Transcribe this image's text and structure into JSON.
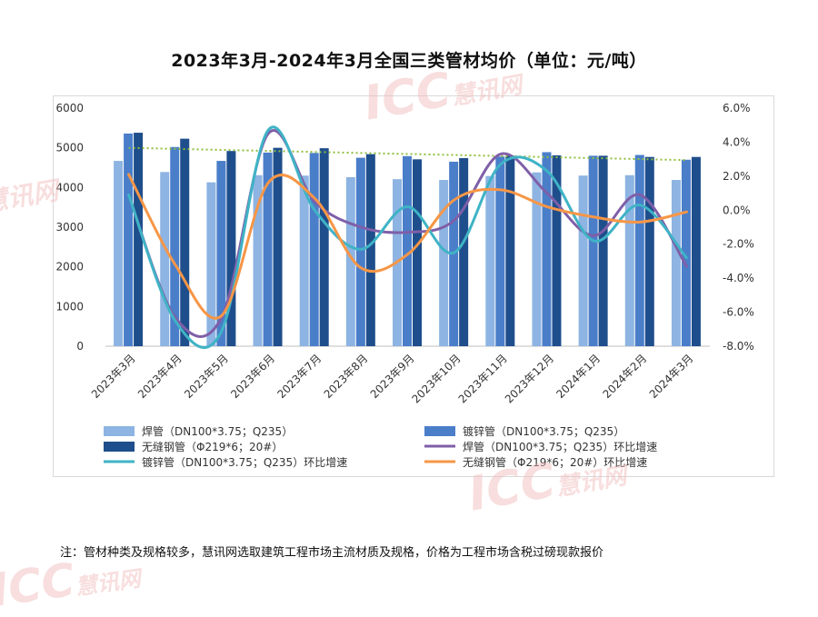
{
  "chart_data": {
    "type": "bar",
    "title": "2023年3月-2024年3月全国三类管材均价（单位：元/吨）",
    "categories": [
      "2023年3月",
      "2023年4月",
      "2023年5月",
      "2023年6月",
      "2023年7月",
      "2023年8月",
      "2023年9月",
      "2023年10月",
      "2023年11月",
      "2023年12月",
      "2024年1月",
      "2024年2月",
      "2024年3月"
    ],
    "left_axis": {
      "ylim": [
        0,
        6000
      ],
      "ticks": [
        "0",
        "1000",
        "2000",
        "3000",
        "4000",
        "5000",
        "6000"
      ]
    },
    "right_axis": {
      "ylim": [
        -8.0,
        6.0
      ],
      "ticks": [
        "-8.0%",
        "-6.0%",
        "-4.0%",
        "-2.0%",
        "0.0%",
        "2.0%",
        "4.0%",
        "6.0%"
      ]
    },
    "bar_series": [
      {
        "name": "焊管（DN100*3.75；Q235）",
        "color": "#8db4e2",
        "values": [
          4670,
          4390,
          4130,
          4310,
          4300,
          4260,
          4210,
          4190,
          4290,
          4380,
          4300,
          4310,
          4190
        ]
      },
      {
        "name": "镀锌管（DN100*3.75；Q235）",
        "color": "#4a7ec9",
        "values": [
          5360,
          5020,
          4670,
          4880,
          4870,
          4750,
          4790,
          4650,
          4780,
          4890,
          4800,
          4820,
          4700
        ]
      },
      {
        "name": "无缝钢管（Φ219*6；20#）",
        "color": "#1f4e8c",
        "values": [
          5380,
          5230,
          4920,
          5000,
          4990,
          4840,
          4710,
          4740,
          4800,
          4810,
          4800,
          4770,
          4770
        ]
      }
    ],
    "line_series": [
      {
        "name": "焊管（DN100*3.75；Q235）环比增速",
        "color": "#7f5fa8",
        "values": [
          0.9,
          -6.3,
          -6.3,
          4.5,
          0.5,
          -1.0,
          -1.3,
          -0.6,
          3.3,
          1.0,
          -1.5,
          0.9,
          -3.3
        ]
      },
      {
        "name": "镀锌管（DN100*3.75；Q235）环比增速",
        "color": "#3fb3c6",
        "values": [
          0.9,
          -6.5,
          -7.1,
          4.7,
          0.0,
          -2.3,
          0.2,
          -2.5,
          2.7,
          2.3,
          -1.8,
          0.3,
          -2.8
        ]
      },
      {
        "name": "无缝钢管（Φ219*6；20#）环比增速",
        "color": "#f79646",
        "values": [
          2.1,
          -3.2,
          -6.2,
          1.6,
          0.7,
          -3.4,
          -2.6,
          0.6,
          1.2,
          0.2,
          -0.4,
          -0.7,
          -0.1
        ]
      }
    ],
    "trendline": {
      "series": "镀锌管（DN100*3.75；Q235）",
      "color": "#8fbf3f",
      "style": "dotted"
    },
    "legend_position": "bottom",
    "grid": false
  },
  "note": "注：管材种类及规格较多，慧讯网选取建筑工程市场主流材质及规格，价格为工程市场含税过磅现款报价",
  "watermark": {
    "logo_text": "ICC",
    "brand_text": "慧讯网"
  }
}
